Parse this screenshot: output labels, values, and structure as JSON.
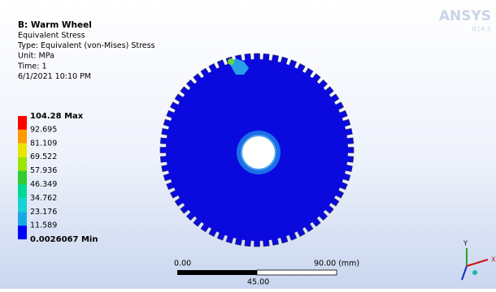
{
  "header": {
    "title": "B: Warm Wheel",
    "lines": [
      "Equivalent Stress",
      "Type: Equivalent (von-Mises) Stress",
      "Unit: MPa",
      "Time: 1",
      "6/1/2021 10:10 PM"
    ]
  },
  "legend": {
    "labels": [
      "104.28 Max",
      "92.695",
      "81.109",
      "69.522",
      "57.936",
      "46.349",
      "34.762",
      "23.176",
      "11.589",
      "0.0026067 Min"
    ]
  },
  "scale": {
    "left": "0.00",
    "right": "90.00 (mm)",
    "mid": "45.00"
  },
  "logo": {
    "name": "ANSYS",
    "version": "R14.5"
  },
  "triad": {
    "y": "Y",
    "x": "X"
  }
}
